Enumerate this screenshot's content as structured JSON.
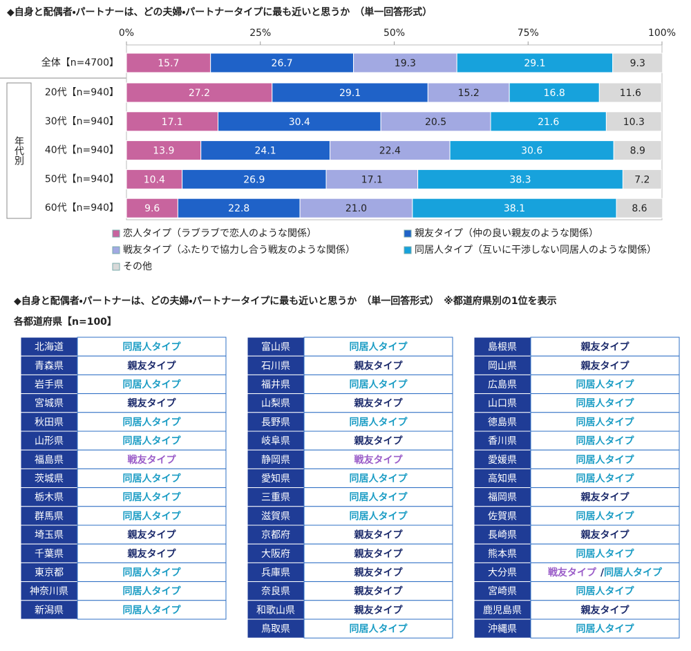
{
  "chart_data": {
    "type": "stacked-bar-horizontal",
    "title": "◆自身と配偶者・パートナーは、どの夫婦・パートナータイプに最も近いと思うか　（単一回答形式）",
    "categories": [
      "全体【n=4700】",
      "20代【n=940】",
      "30代【n=940】",
      "40代【n=940】",
      "50代【n=940】",
      "60代【n=940】"
    ],
    "group_label": "年代別",
    "xlim": [
      0,
      100
    ],
    "xticks": [
      {
        "value": 0,
        "label": "0%"
      },
      {
        "value": 25,
        "label": "25%"
      },
      {
        "value": 50,
        "label": "50%"
      },
      {
        "value": 75,
        "label": "75%"
      },
      {
        "value": 100,
        "label": "100%"
      }
    ],
    "series": [
      {
        "name": "恋人タイプ（ラブラブで恋人のような関係）",
        "color": "#c8649e",
        "values": [
          15.7,
          27.2,
          17.1,
          13.9,
          10.4,
          9.6
        ]
      },
      {
        "name": "親友タイプ（仲の良い親友のような関係）",
        "color": "#1f62c8",
        "values": [
          26.7,
          29.1,
          30.4,
          24.1,
          26.9,
          22.8
        ]
      },
      {
        "name": "戦友タイプ（ふたりで協力し合う戦友のような関係）",
        "color": "#a2a9e2",
        "values": [
          19.3,
          15.2,
          20.5,
          22.4,
          17.1,
          21.0
        ],
        "value_labels": [
          "19.3",
          "15.2",
          "20.5",
          "22.4",
          "17.1",
          "21.0"
        ]
      },
      {
        "name": "同居人タイプ（互いに干渉しない同居人のような関係）",
        "color": "#17a2dc",
        "values": [
          29.1,
          16.8,
          21.6,
          30.6,
          38.3,
          38.1
        ]
      },
      {
        "name": "その他",
        "color": "#d9d9d9",
        "values": [
          9.3,
          11.6,
          10.3,
          8.9,
          7.2,
          8.6
        ]
      }
    ]
  },
  "table_section": {
    "title": "◆自身と配偶者・パートナーは、どの夫婦・パートナータイプに最も近いと思うか　（単一回答形式）　※都道府県別の1位を表示",
    "subtitle": "各都道府県【n=100】",
    "separator": "/",
    "type_colors": {
      "同居人タイプ": "#1a9cc4",
      "親友タイプ": "#1b2a6b",
      "戦友タイプ": "#9a5cc8"
    },
    "columns": [
      {
        "rows": [
          {
            "prefecture": "北海道",
            "types": [
              "同居人タイプ"
            ]
          },
          {
            "prefecture": "青森県",
            "types": [
              "親友タイプ"
            ]
          },
          {
            "prefecture": "岩手県",
            "types": [
              "同居人タイプ"
            ]
          },
          {
            "prefecture": "宮城県",
            "types": [
              "親友タイプ"
            ]
          },
          {
            "prefecture": "秋田県",
            "types": [
              "同居人タイプ"
            ]
          },
          {
            "prefecture": "山形県",
            "types": [
              "同居人タイプ"
            ]
          },
          {
            "prefecture": "福島県",
            "types": [
              "戦友タイプ"
            ]
          },
          {
            "prefecture": "茨城県",
            "types": [
              "同居人タイプ"
            ]
          },
          {
            "prefecture": "栃木県",
            "types": [
              "同居人タイプ"
            ]
          },
          {
            "prefecture": "群馬県",
            "types": [
              "同居人タイプ"
            ]
          },
          {
            "prefecture": "埼玉県",
            "types": [
              "親友タイプ"
            ]
          },
          {
            "prefecture": "千葉県",
            "types": [
              "親友タイプ"
            ]
          },
          {
            "prefecture": "東京都",
            "types": [
              "同居人タイプ"
            ]
          },
          {
            "prefecture": "神奈川県",
            "types": [
              "同居人タイプ"
            ]
          },
          {
            "prefecture": "新潟県",
            "types": [
              "同居人タイプ"
            ]
          }
        ]
      },
      {
        "rows": [
          {
            "prefecture": "富山県",
            "types": [
              "同居人タイプ"
            ]
          },
          {
            "prefecture": "石川県",
            "types": [
              "親友タイプ"
            ]
          },
          {
            "prefecture": "福井県",
            "types": [
              "同居人タイプ"
            ]
          },
          {
            "prefecture": "山梨県",
            "types": [
              "親友タイプ"
            ]
          },
          {
            "prefecture": "長野県",
            "types": [
              "同居人タイプ"
            ]
          },
          {
            "prefecture": "岐阜県",
            "types": [
              "親友タイプ"
            ]
          },
          {
            "prefecture": "静岡県",
            "types": [
              "戦友タイプ"
            ]
          },
          {
            "prefecture": "愛知県",
            "types": [
              "同居人タイプ"
            ]
          },
          {
            "prefecture": "三重県",
            "types": [
              "同居人タイプ"
            ]
          },
          {
            "prefecture": "滋賀県",
            "types": [
              "同居人タイプ"
            ]
          },
          {
            "prefecture": "京都府",
            "types": [
              "親友タイプ"
            ]
          },
          {
            "prefecture": "大阪府",
            "types": [
              "親友タイプ"
            ]
          },
          {
            "prefecture": "兵庫県",
            "types": [
              "親友タイプ"
            ]
          },
          {
            "prefecture": "奈良県",
            "types": [
              "親友タイプ"
            ]
          },
          {
            "prefecture": "和歌山県",
            "types": [
              "親友タイプ"
            ]
          },
          {
            "prefecture": "鳥取県",
            "types": [
              "同居人タイプ"
            ]
          }
        ]
      },
      {
        "rows": [
          {
            "prefecture": "島根県",
            "types": [
              "親友タイプ"
            ]
          },
          {
            "prefecture": "岡山県",
            "types": [
              "親友タイプ"
            ]
          },
          {
            "prefecture": "広島県",
            "types": [
              "同居人タイプ"
            ]
          },
          {
            "prefecture": "山口県",
            "types": [
              "同居人タイプ"
            ]
          },
          {
            "prefecture": "徳島県",
            "types": [
              "同居人タイプ"
            ]
          },
          {
            "prefecture": "香川県",
            "types": [
              "同居人タイプ"
            ]
          },
          {
            "prefecture": "愛媛県",
            "types": [
              "同居人タイプ"
            ]
          },
          {
            "prefecture": "高知県",
            "types": [
              "同居人タイプ"
            ]
          },
          {
            "prefecture": "福岡県",
            "types": [
              "親友タイプ"
            ]
          },
          {
            "prefecture": "佐賀県",
            "types": [
              "同居人タイプ"
            ]
          },
          {
            "prefecture": "長崎県",
            "types": [
              "親友タイプ"
            ]
          },
          {
            "prefecture": "熊本県",
            "types": [
              "同居人タイプ"
            ]
          },
          {
            "prefecture": "大分県",
            "types": [
              "戦友タイプ",
              "同居人タイプ"
            ]
          },
          {
            "prefecture": "宮崎県",
            "types": [
              "同居人タイプ"
            ]
          },
          {
            "prefecture": "鹿児島県",
            "types": [
              "親友タイプ"
            ]
          },
          {
            "prefecture": "沖縄県",
            "types": [
              "同居人タイプ"
            ]
          }
        ]
      }
    ]
  }
}
